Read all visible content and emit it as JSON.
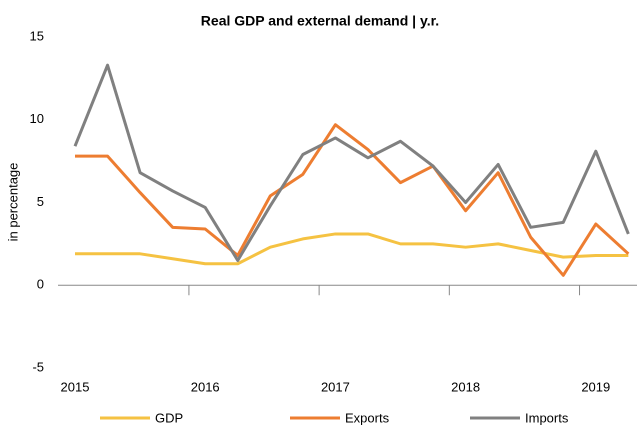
{
  "chart_data": {
    "type": "line",
    "title": "Real GDP  and external demand | y.r.",
    "y_label": "in percentage",
    "categories": [
      "2015",
      null,
      null,
      null,
      "2016",
      null,
      null,
      null,
      "2017",
      null,
      null,
      null,
      "2018",
      null,
      null,
      null,
      "2019",
      null
    ],
    "series": [
      {
        "name": "GDP",
        "color": "#f5c242",
        "values": [
          1.9,
          1.9,
          1.9,
          1.6,
          1.3,
          1.3,
          2.3,
          2.8,
          3.1,
          3.1,
          2.5,
          2.5,
          2.3,
          2.5,
          2.1,
          1.7,
          1.8,
          1.8
        ]
      },
      {
        "name": "Exports",
        "color": "#ed7d31",
        "values": [
          7.8,
          7.8,
          5.6,
          3.5,
          3.4,
          1.8,
          5.4,
          6.7,
          9.7,
          8.2,
          6.2,
          7.2,
          4.5,
          6.8,
          2.9,
          0.6,
          3.7,
          1.9
        ]
      },
      {
        "name": "Imports",
        "color": "#808080",
        "values": [
          8.4,
          13.3,
          6.8,
          5.7,
          4.7,
          1.5,
          4.8,
          7.9,
          8.9,
          7.7,
          8.7,
          7.2,
          5.0,
          7.3,
          3.5,
          3.8,
          8.1,
          3.1
        ]
      }
    ],
    "ylim": [
      -5,
      15
    ],
    "yticks": [
      -5,
      0,
      5,
      10,
      15
    ],
    "grid": false,
    "legend": "bottom"
  }
}
